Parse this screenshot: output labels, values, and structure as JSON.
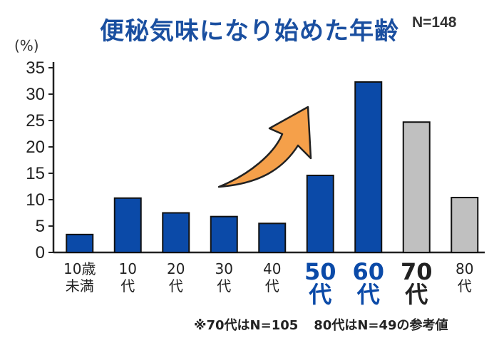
{
  "chart_data": {
    "type": "bar",
    "title": "便秘気味になり始めた年齢",
    "sample_size": "N=148",
    "ylabel": "(%)",
    "ylim": [
      0,
      35
    ],
    "yticks": [
      0,
      5,
      10,
      15,
      20,
      25,
      30,
      35
    ],
    "grid": false,
    "categories": [
      {
        "line1": "10歳",
        "line2": "未満",
        "value": 3.4,
        "style": "blue"
      },
      {
        "line1": "10",
        "line2": "代",
        "value": 10.3,
        "style": "blue"
      },
      {
        "line1": "20",
        "line2": "代",
        "value": 7.5,
        "style": "blue"
      },
      {
        "line1": "30",
        "line2": "代",
        "value": 6.8,
        "style": "blue"
      },
      {
        "line1": "40",
        "line2": "代",
        "value": 5.5,
        "style": "blue"
      },
      {
        "line1": "50",
        "line2": "代",
        "value": 14.6,
        "style": "blue-highlight"
      },
      {
        "line1": "60",
        "line2": "代",
        "value": 32.3,
        "style": "blue-highlight"
      },
      {
        "line1": "70",
        "line2": "代",
        "value": 24.7,
        "style": "gray-highlight"
      },
      {
        "line1": "80",
        "line2": "代",
        "value": 10.4,
        "style": "gray"
      }
    ],
    "annotation_arrow": "rising trend from 40代 toward 50代–60代",
    "footnote": [
      "※70代はN=105",
      "80代はN=49の参考値"
    ]
  },
  "colors": {
    "title": "#1a4fa0",
    "bar_blue": "#0b4aa8",
    "bar_gray": "#c0c0c0",
    "bar_stroke": "#111111",
    "arrow": "#f5a04a",
    "highlight_label_blue": "#0b4aa8",
    "highlight_label_dark": "#222222",
    "axis": "#222222"
  }
}
